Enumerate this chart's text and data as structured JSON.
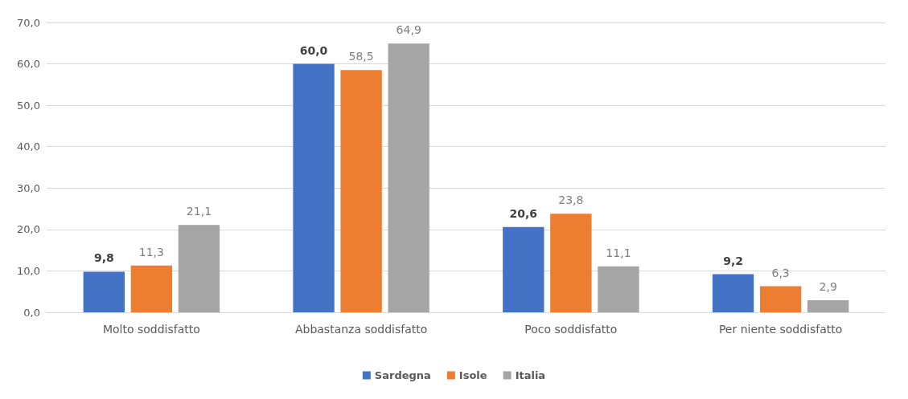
{
  "chart_data": {
    "type": "bar",
    "categories": [
      "Molto soddisfatto",
      "Abbastanza soddisfatto",
      "Poco soddisfatto",
      "Per niente soddisfatto"
    ],
    "series": [
      {
        "name": "Sardegna",
        "color": "#4472c4",
        "values": [
          9.8,
          60.0,
          20.6,
          9.2
        ],
        "value_labels": [
          "9,8",
          "60,0",
          "20,6",
          "9,2"
        ]
      },
      {
        "name": "Isole",
        "color": "#ed7d31",
        "values": [
          11.3,
          58.5,
          23.8,
          6.3
        ],
        "value_labels": [
          "11,3",
          "58,5",
          "23,8",
          "6,3"
        ]
      },
      {
        "name": "Italia",
        "color": "#a5a5a5",
        "values": [
          21.1,
          64.9,
          11.1,
          2.9
        ],
        "value_labels": [
          "21,1",
          "64,9",
          "11,1",
          "2,9"
        ]
      }
    ],
    "ylim": [
      0,
      70
    ],
    "yticks": [
      {
        "value": 0,
        "label": "0,0"
      },
      {
        "value": 10,
        "label": "10,0"
      },
      {
        "value": 20,
        "label": "20,0"
      },
      {
        "value": 30,
        "label": "30,0"
      },
      {
        "value": 40,
        "label": "40,0"
      },
      {
        "value": 50,
        "label": "50,0"
      },
      {
        "value": 60,
        "label": "60,0"
      },
      {
        "value": 70,
        "label": "70,0"
      }
    ],
    "grid": "y",
    "legend": "bottom"
  }
}
